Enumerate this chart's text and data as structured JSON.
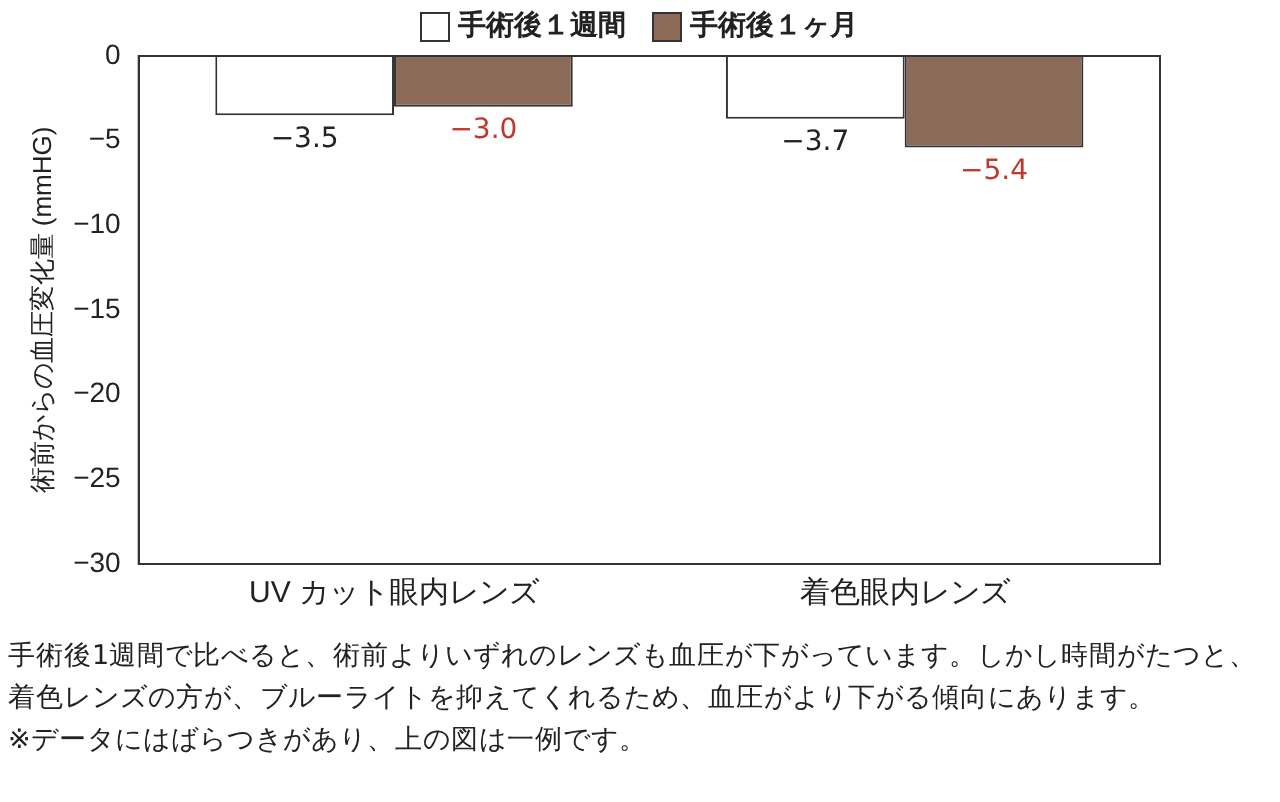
{
  "chart_data": {
    "type": "bar",
    "ylabel": "術前からの血圧変化量 (mmHG)",
    "categories": [
      "UV カット眼内レンズ",
      "着色眼内レンズ"
    ],
    "series": [
      {
        "name": "手術後１週間",
        "color": "#ffffff",
        "values": [
          -3.5,
          -3.7
        ],
        "value_labels": [
          "−3.5",
          "−3.7"
        ]
      },
      {
        "name": "手術後１ヶ月",
        "color": "#8b6a57",
        "values": [
          -3.0,
          -5.4
        ],
        "value_labels": [
          "−3.0",
          "−5.4"
        ]
      }
    ],
    "ylim": [
      -30,
      0
    ],
    "yticks": [
      -30,
      -25,
      -20,
      -15,
      -10,
      -5,
      0
    ],
    "grid": false,
    "legend": "top",
    "annotations": [
      "手術後1週間で比べると、術前よりいずれのレンズも血圧が下がっています。しかし時間がたつと、",
      "着色レンズの方が、ブルーライトを抑えてくれるため、血圧がより下がる傾向にあります。",
      "※データにはばらつきがあり、上の図は一例です。"
    ]
  }
}
